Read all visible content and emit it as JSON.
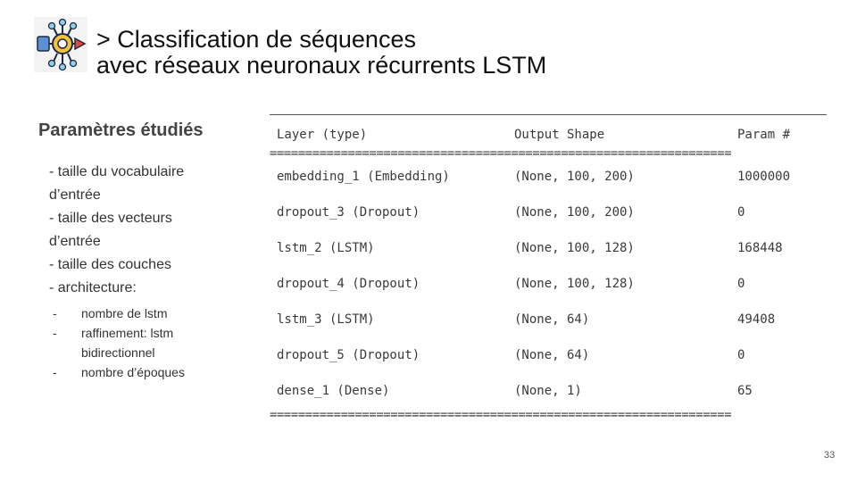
{
  "header": {
    "title_line1": "> Classification de séquences",
    "title_line2": "avec réseaux neuronaux récurrents LSTM",
    "logo_icon": "neural-network-chip-icon"
  },
  "sidebar": {
    "heading": "Paramètres étudiés",
    "items": [
      "- taille du vocabulaire",
      "d’entrée",
      "- taille des vecteurs",
      "d’entrée",
      "- taille des couches",
      "- architecture:"
    ],
    "sub_items": [
      {
        "dash": "-",
        "text": "nombre  de lstm"
      },
      {
        "dash": "-",
        "text": "raffinement:  lstm bidirectionnel"
      },
      {
        "dash": "-",
        "text": "nombre  d’époques"
      }
    ]
  },
  "model_summary": {
    "headers": [
      "Layer (type)",
      "Output Shape",
      "Param #"
    ],
    "separator": "=================================================================",
    "rows": [
      [
        "embedding_1 (Embedding)",
        "(None, 100, 200)",
        "1000000"
      ],
      [
        "dropout_3 (Dropout)",
        "(None, 100, 200)",
        "0"
      ],
      [
        "lstm_2 (LSTM)",
        "(None, 100, 128)",
        "168448"
      ],
      [
        "dropout_4 (Dropout)",
        "(None, 100, 128)",
        "0"
      ],
      [
        "lstm_3 (LSTM)",
        "(None, 64)",
        "49408"
      ],
      [
        "dropout_5 (Dropout)",
        "(None, 64)",
        "0"
      ],
      [
        "dense_1 (Dense)",
        "(None, 1)",
        "65"
      ]
    ]
  },
  "footer": {
    "page_number": "33"
  }
}
